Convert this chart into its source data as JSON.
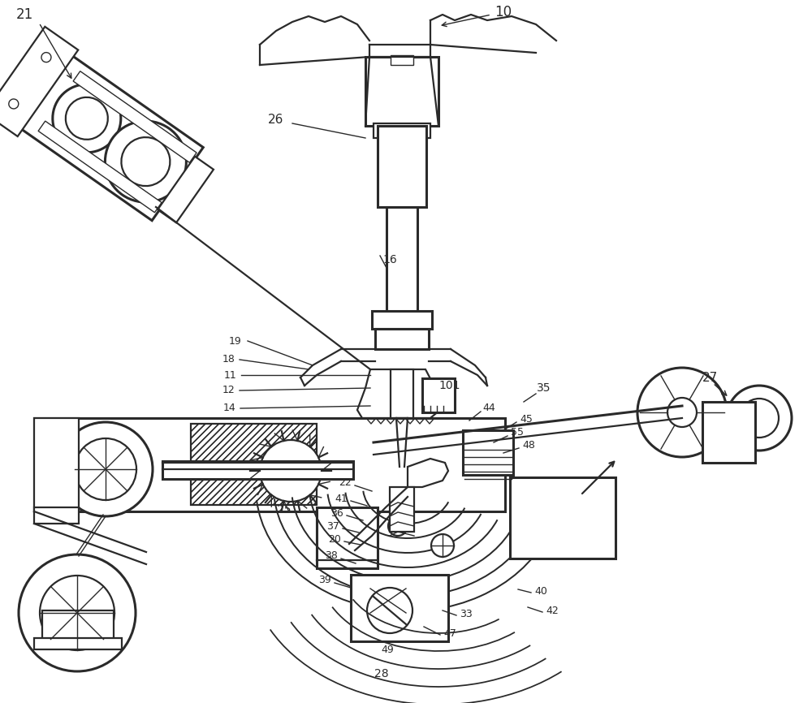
{
  "bg_color": "#ffffff",
  "line_color": "#2a2a2a",
  "lw_thin": 1.0,
  "lw_med": 1.6,
  "lw_thick": 2.2,
  "fig_w": 10.0,
  "fig_h": 8.66,
  "dpi": 100
}
